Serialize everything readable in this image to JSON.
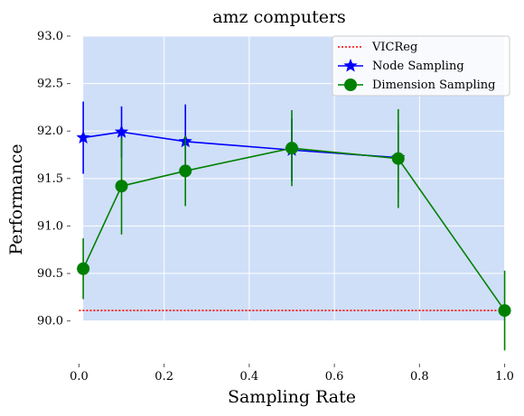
{
  "chart_data": {
    "type": "line",
    "title": "amz computers",
    "xlabel": "Sampling Rate",
    "ylabel": "Performance",
    "xlim": [
      -0.02,
      1.02
    ],
    "ylim": [
      89.55,
      93.0
    ],
    "shaded_region": {
      "x": [
        0.01,
        1.0
      ],
      "y": [
        90.0,
        93.0
      ],
      "color": "#cfdff8"
    },
    "xticks": [
      0.0,
      0.2,
      0.4,
      0.6,
      0.8,
      1.0
    ],
    "xtick_labels": [
      "0.0",
      "0.2",
      "0.4",
      "0.6",
      "0.8",
      "1.0"
    ],
    "yticks": [
      90.0,
      90.5,
      91.0,
      91.5,
      92.0,
      92.5,
      93.0
    ],
    "ytick_labels": [
      "90.0",
      "90.5",
      "91.0",
      "91.5",
      "92.0",
      "92.5",
      "93.0"
    ],
    "grid": true,
    "legend_position": "top-right",
    "baseline": {
      "name": "VICReg",
      "y": 90.11,
      "color": "#ff0000",
      "style": "dotted"
    },
    "series": [
      {
        "name": "Node Sampling",
        "color": "#0000ff",
        "marker": "star",
        "x": [
          0.01,
          0.1,
          0.25,
          0.5,
          0.75
        ],
        "y": [
          91.93,
          91.99,
          91.89,
          91.8,
          91.72
        ],
        "err": [
          0.38,
          0.27,
          0.39,
          0.33,
          0.36
        ]
      },
      {
        "name": "Dimension Sampling",
        "color": "#008000",
        "marker": "circle",
        "x": [
          0.01,
          0.1,
          0.25,
          0.5,
          0.75,
          1.0
        ],
        "y": [
          90.55,
          91.42,
          91.58,
          91.82,
          91.71,
          90.11
        ],
        "err": [
          0.32,
          0.51,
          0.37,
          0.4,
          0.52,
          0.42
        ]
      }
    ]
  }
}
